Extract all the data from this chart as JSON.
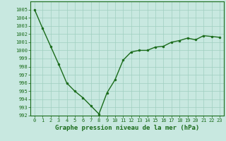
{
  "x": [
    0,
    1,
    2,
    3,
    4,
    5,
    6,
    7,
    8,
    9,
    10,
    11,
    12,
    13,
    14,
    15,
    16,
    17,
    18,
    19,
    20,
    21,
    22,
    23
  ],
  "y": [
    1005.0,
    1002.7,
    1000.5,
    998.3,
    996.0,
    995.0,
    994.2,
    993.2,
    992.2,
    994.8,
    996.4,
    998.8,
    999.8,
    1000.0,
    1000.0,
    1000.4,
    1000.5,
    1001.0,
    1001.2,
    1001.5,
    1001.3,
    1001.8,
    1001.7,
    1001.6
  ],
  "line_color": "#1a6b1a",
  "marker": "o",
  "marker_size": 2.0,
  "bg_color": "#c8e8e0",
  "grid_color": "#9fcfbf",
  "xlabel": "Graphe pression niveau de la mer (hPa)",
  "xlabel_fontsize": 6.5,
  "ylim": [
    992,
    1006
  ],
  "xlim": [
    -0.5,
    23.5
  ],
  "yticks": [
    992,
    993,
    994,
    995,
    996,
    997,
    998,
    999,
    1000,
    1001,
    1002,
    1003,
    1004,
    1005
  ],
  "xticks": [
    0,
    1,
    2,
    3,
    4,
    5,
    6,
    7,
    8,
    9,
    10,
    11,
    12,
    13,
    14,
    15,
    16,
    17,
    18,
    19,
    20,
    21,
    22,
    23
  ],
  "tick_fontsize": 5.0,
  "line_width": 1.0
}
